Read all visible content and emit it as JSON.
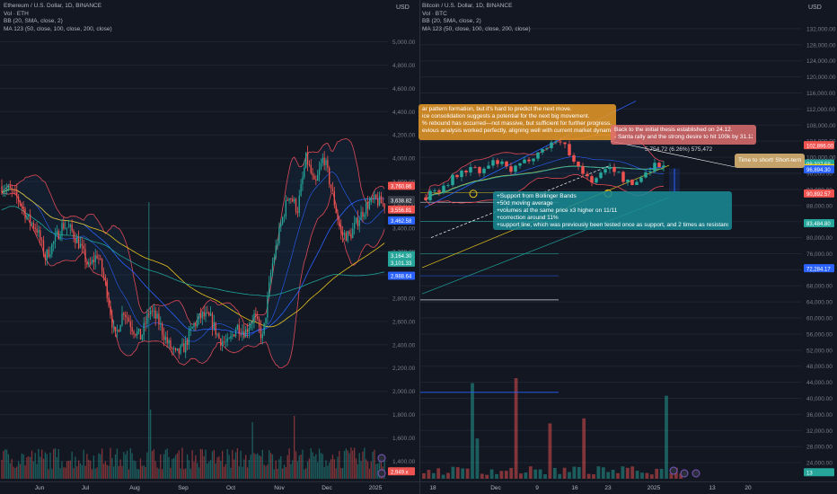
{
  "colors": {
    "background": "#131722",
    "up": "#26a69a",
    "down": "#ef5350",
    "bb_band": "#e04a57",
    "ma50": "#2962ff",
    "ma100": "#e6c41e",
    "ma200": "#1fa39b"
  },
  "left_pane": {
    "title": "Ethereum / U.S. Dollar, 1D, BINANCE",
    "vol": "Vol · ETH",
    "bb": "BB (20, SMA, close, 2)",
    "ma": "MA 123 (50, close, 100, close, 200, close)",
    "currency": "USD"
  },
  "right_pane": {
    "title": "Bitcoin / U.S. Dollar, 1D, BINANCE",
    "vol": "Vol · BTC",
    "bb": "BB (20, SMA, close, 2)",
    "ma": "MA 123 (50, close, 100, close, 200, close)",
    "currency": "USD"
  },
  "annotations": {
    "orange_note": [
      "ar pattern formation, but it's hard to predict the next move.",
      "ice consolidation suggests a potential for the next big movement.",
      "% rebound has occurred—not massive, but sufficient for further progress.",
      "evious analysis worked perfectly, aligning well with current market dynamics."
    ],
    "red_note": [
      "Back to the initial thesis established on 24.12.",
      "- Santa rally and the strong desire to hit 100k by 31.12."
    ],
    "teal_note": [
      "+Support from Bollinger Bands",
      "+50d moving average",
      "+volumes at the same price x3 higher on 11/11",
      "+correction around 11%",
      "+support line, which was previously been tested once as support, and 2 times as resistance"
    ],
    "tan_note": "Time to short! Short-term",
    "measure_label": "5,754.72 (6.26%) 575,472"
  },
  "chart_data": [
    {
      "type": "candlestick",
      "title": "Ethereum / U.S. Dollar, 1D, BINANCE",
      "ylabel": "USD",
      "ylim": [
        1250,
        5250
      ],
      "y_ticks": [
        5000,
        4800,
        4600,
        4400,
        4200,
        4000,
        3800,
        3600,
        3400,
        3200,
        3000,
        2800,
        2600,
        2400,
        2200,
        2000,
        1800,
        1600,
        1400
      ],
      "y_tick_labels": [
        "5,000.00",
        "4,800.00",
        "4,600.00",
        "4,400.00",
        "4,200.00",
        "4,000.00",
        "3,800.00",
        "3,600.00",
        "3,400.00",
        "3,200.00",
        "3,000.00",
        "2,800.00",
        "2,600.00",
        "2,400.00",
        "2,200.00",
        "2,000.00",
        "1,800.00",
        "1,600.00",
        "1,400.00"
      ],
      "x_labels": [
        "Jun",
        "Jul",
        "Aug",
        "Sep",
        "Oct",
        "Nov",
        "Dec",
        "2025"
      ],
      "price_path": [
        3760,
        3720,
        3640,
        3480,
        3400,
        3150,
        3280,
        3430,
        3380,
        3250,
        3060,
        3180,
        2900,
        2450,
        2700,
        2550,
        2460,
        2700,
        2600,
        2420,
        2310,
        2380,
        2560,
        2650,
        2620,
        2450,
        2400,
        2560,
        2510,
        2650,
        2450,
        3050,
        3400,
        3700,
        3560,
        4010,
        3750,
        4020,
        3700,
        3350,
        3330,
        3480,
        3600,
        3640,
        3600
      ],
      "price_tags": [
        "3,760.86",
        "3,638.82",
        "3,556.81",
        "3,462.58",
        "3,164.30",
        "3,101.33",
        "2,988.64",
        "2,949.x"
      ],
      "volume_notes": "volume histogram at bottom with tall bar at Aug"
    },
    {
      "type": "candlestick",
      "title": "Bitcoin / U.S. Dollar, 1D, BINANCE",
      "ylabel": "USD",
      "ylim": [
        20000,
        136000
      ],
      "y_ticks": [
        132000,
        128000,
        124000,
        120000,
        116000,
        112000,
        108000,
        104000,
        100000,
        96000,
        92000,
        88000,
        84000,
        80000,
        76000,
        72000,
        68000,
        64000,
        60000,
        56000,
        52000,
        48000,
        44000,
        40000,
        36000,
        32000,
        28000,
        24000
      ],
      "y_tick_labels": [
        "132,000.00",
        "128,000.00",
        "124,000.00",
        "120,000.00",
        "116,000.00",
        "112,000.00",
        "108,000.00",
        "104,000.00",
        "100,000.00",
        "96,000.00",
        "92,000.00",
        "88,000.00",
        "84,000.00",
        "80,000.00",
        "76,000.00",
        "72,000.00",
        "68,000.00",
        "64,000.00",
        "60,000.00",
        "56,000.00",
        "52,000.00",
        "48,000.00",
        "44,000.00",
        "40,000.00",
        "36,000.00",
        "32,000.00",
        "28,000.00",
        "24,000.00"
      ],
      "x_labels": [
        "18",
        "Dec",
        "9",
        "16",
        "23",
        "2025",
        "13",
        "20"
      ],
      "price_path": [
        90000,
        91500,
        92500,
        94000,
        95500,
        96500,
        97500,
        96000,
        97500,
        99000,
        98000,
        96500,
        97500,
        99000,
        100500,
        101500,
        103000,
        104500,
        103000,
        100500,
        97000,
        95000,
        94000,
        96000,
        98000,
        96000,
        94000,
        93000,
        95000,
        97000,
        98500,
        97500
      ],
      "price_tags": [
        "102,896.00",
        "98,327.58",
        "97,162.64",
        "96,894.30",
        "90,892.57",
        "83,484.80",
        "72,284.17",
        "13"
      ],
      "horizontal_levels": [
        91200,
        88800,
        84000,
        76000,
        70500,
        64500
      ],
      "volume_notes": "volume histogram at bottom, tall bars mid-Nov, early Dec and early Jan"
    }
  ]
}
